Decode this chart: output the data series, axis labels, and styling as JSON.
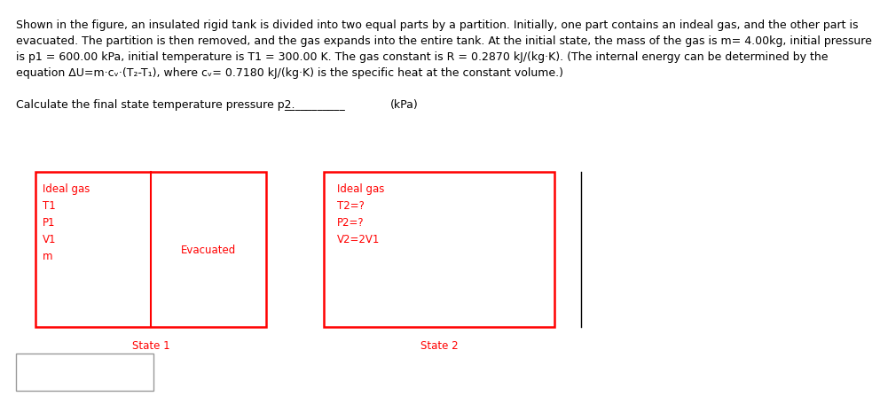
{
  "body_line1": "Shown in the figure, an insulated rigid tank is divided into two equal parts by a partition. Initially, one part contains an indeal gas, and the other part is",
  "body_line2": "evacuated. The partition is then removed, and the gas expands into the entire tank. At the initial state, the mass of the gas is m= 4.00kg, initial pressure",
  "body_line3": "is p1 = 600.00 kPa, initial temperature is T1 = 300.00 K. The gas constant is R = 0.2870 kJ/(kg·K). (The internal energy can be determined by the",
  "body_line4": "equation ΔU=m·cᵥ·(T₂-T₁), where cᵥ= 0.7180 kJ/(kg·K) is the specific heat at the constant volume.)",
  "question_text": "Calculate the final state temperature pressure p2.",
  "question_underline": "___________",
  "question_unit": "(kPa)",
  "red_color": "#FF0000",
  "gray_color": "#999999",
  "black_color": "#000000",
  "state1_left_label": "Ideal gas\nT1\nP1\nV1\nm",
  "state1_right_label": "Evacuated",
  "state2_label": "Ideal gas\nT2=?\nP2=?\nV2=2V1",
  "state1_caption": "State 1",
  "state2_caption": "State 2",
  "font_size_body": 9.0,
  "font_size_diagram": 8.5,
  "font_size_caption": 8.5
}
